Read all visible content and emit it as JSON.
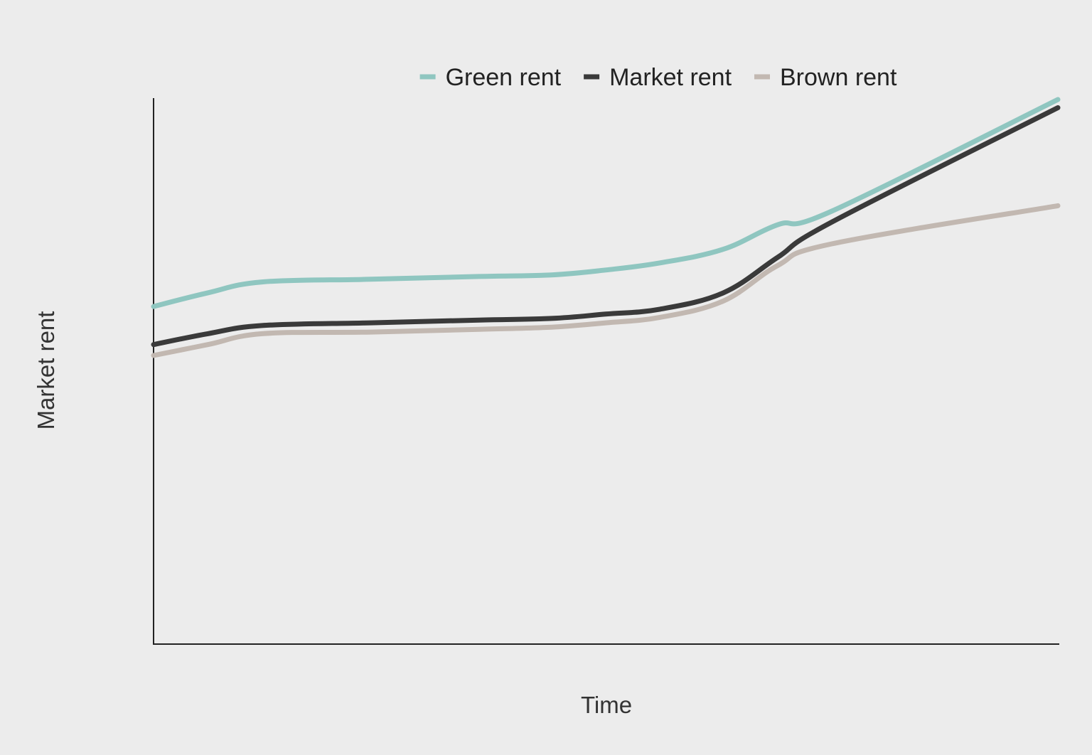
{
  "chart_data": {
    "type": "line",
    "title": "",
    "xlabel": "Time",
    "ylabel": "Market rent",
    "xlim": [
      0,
      100
    ],
    "ylim": [
      0,
      100
    ],
    "grid": false,
    "ticks_shown": false,
    "legend_position": "top",
    "x": [
      0,
      6,
      12,
      24,
      36,
      44,
      50,
      56,
      63,
      69,
      75,
      100
    ],
    "series": [
      {
        "name": "Green rent",
        "color": "#8fc6c0",
        "values": [
          62,
          64.5,
          66.5,
          67,
          67.5,
          67.8,
          68.7,
          70,
          72.5,
          77,
          79.5,
          100
        ]
      },
      {
        "name": "Market rent",
        "color": "#3a3a3a",
        "values": [
          55,
          57,
          58.5,
          59,
          59.5,
          59.8,
          60.6,
          61.5,
          64.5,
          71,
          77.5,
          98.5
        ]
      },
      {
        "name": "Brown rent",
        "color": "#c2b8b1",
        "values": [
          53,
          55,
          57,
          57.3,
          57.8,
          58.2,
          59,
          60,
          63,
          69.5,
          73.5,
          80.5
        ]
      }
    ]
  }
}
